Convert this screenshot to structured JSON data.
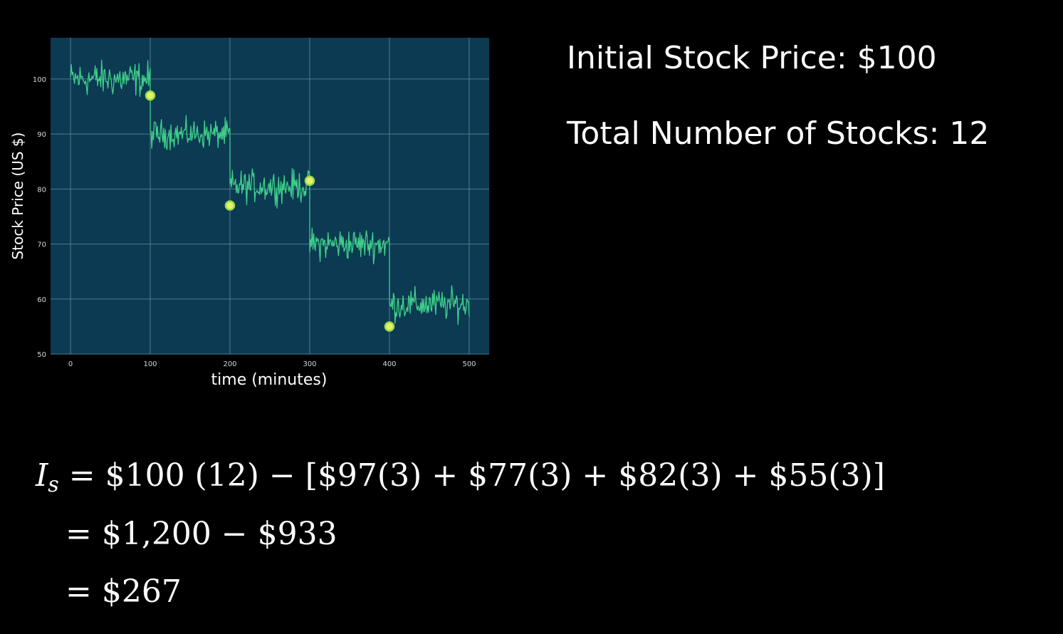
{
  "colors": {
    "background": "#000000",
    "plot_background": "#0b3a52",
    "grid": "#4f7d93",
    "line": "#3fd08a",
    "marker_fill": "#e6f06a",
    "marker_edge": "#9ddc4a",
    "text": "#ffffff",
    "tick_text": "#cfd8dc"
  },
  "info": {
    "price_label": "Initial Stock Price:",
    "price_value": "$100",
    "count_label": "Total Number of Stocks:",
    "count_value": "12"
  },
  "equations": {
    "line1_symbol": "I",
    "line1_subscript": "s",
    "line1_rhs": "= $100 (12)  − [$97(3) + $77(3) + $82(3) + $55(3)]",
    "line2": "= $1,200  − $933",
    "line3": "= $267"
  },
  "chart_data": {
    "type": "line",
    "title": "",
    "xlabel": "time (minutes)",
    "ylabel": "Stock Price (US $)",
    "xlim": [
      -25,
      525
    ],
    "ylim": [
      50,
      107.5
    ],
    "xticks": [
      "0",
      "100",
      "200",
      "300",
      "400",
      "500"
    ],
    "yticks": [
      "50",
      "60",
      "70",
      "80",
      "90",
      "100"
    ],
    "grid": true,
    "series": [
      {
        "segments": [
          {
            "x_start": 0,
            "x_end": 100,
            "mean": 100,
            "noise": 2.2
          },
          {
            "x_start": 100,
            "x_end": 200,
            "mean": 90,
            "noise": 1.8
          },
          {
            "x_start": 200,
            "x_end": 300,
            "mean": 80.5,
            "noise": 2.0
          },
          {
            "x_start": 300,
            "x_end": 400,
            "mean": 70,
            "noise": 2.0
          },
          {
            "x_start": 400,
            "x_end": 500,
            "mean": 59,
            "noise": 2.0
          }
        ]
      }
    ],
    "markers": [
      {
        "x": 100,
        "y": 97
      },
      {
        "x": 200,
        "y": 77
      },
      {
        "x": 300,
        "y": 81.5
      },
      {
        "x": 400,
        "y": 55
      }
    ]
  }
}
